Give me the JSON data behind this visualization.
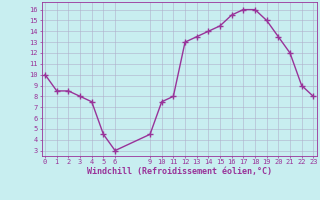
{
  "x_values": [
    0,
    1,
    2,
    3,
    4,
    5,
    6,
    9,
    10,
    11,
    12,
    13,
    14,
    15,
    16,
    17,
    18,
    19,
    20,
    21,
    22,
    23
  ],
  "y_values": [
    10,
    8.5,
    8.5,
    8.0,
    7.5,
    4.5,
    3.0,
    4.5,
    7.5,
    8.0,
    13.0,
    13.5,
    14.0,
    14.5,
    15.5,
    16.0,
    16.0,
    15.0,
    13.5,
    12.0,
    9.0,
    8.0
  ],
  "x_ticks": [
    0,
    1,
    2,
    3,
    4,
    5,
    6,
    9,
    10,
    11,
    12,
    13,
    14,
    15,
    16,
    17,
    18,
    19,
    20,
    21,
    22,
    23
  ],
  "y_ticks": [
    3,
    4,
    5,
    6,
    7,
    8,
    9,
    10,
    11,
    12,
    13,
    14,
    15,
    16
  ],
  "ylim": [
    2.5,
    16.7
  ],
  "xlim": [
    -0.3,
    23.3
  ],
  "line_color": "#993399",
  "marker": "+",
  "marker_size": 4,
  "marker_edge_width": 1.0,
  "line_width": 1.0,
  "bg_color": "#c8eef0",
  "grid_color": "#b0b0cc",
  "xlabel": "Windchill (Refroidissement éolien,°C)",
  "xlabel_color": "#993399",
  "tick_color": "#993399",
  "axis_color": "#993399",
  "tick_fontsize": 5.0,
  "xlabel_fontsize": 6.0
}
